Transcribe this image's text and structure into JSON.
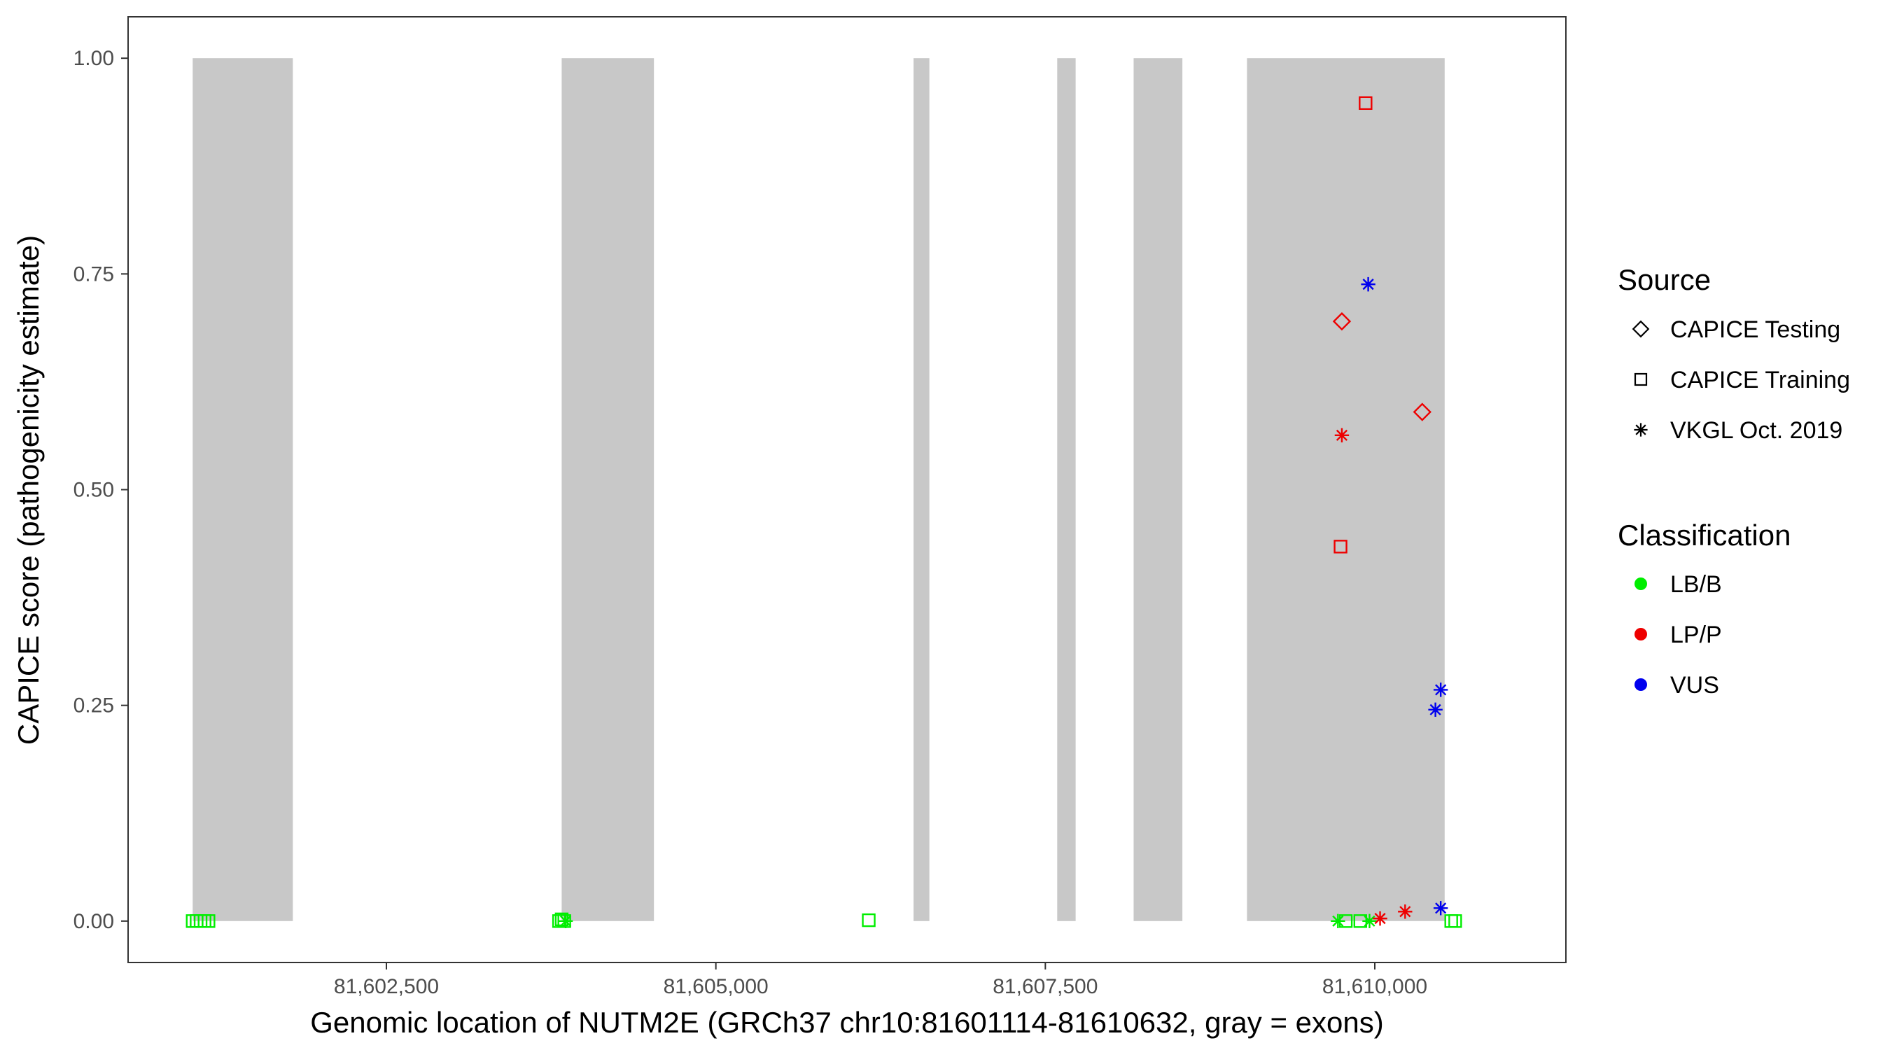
{
  "chart_data": {
    "type": "scatter",
    "xlabel": "Genomic location of NUTM2E (GRCh37 chr10:81601114-81610632, gray = exons)",
    "ylabel": "CAPICE score (pathogenicity estimate)",
    "xlim": [
      81600540,
      81611450
    ],
    "ylim": [
      -0.048,
      1.048
    ],
    "x_ticks": [
      81602500,
      81605000,
      81607500,
      81610000
    ],
    "x_tick_labels": [
      "81,602,500",
      "81,605,000",
      "81,607,500",
      "81,610,000"
    ],
    "y_ticks": [
      0,
      0.25,
      0.5,
      0.75,
      1.0
    ],
    "y_tick_labels": [
      "0.00",
      "0.25",
      "0.50",
      "0.75",
      "1.00"
    ],
    "grid": false,
    "exons": [
      [
        81601030,
        81601790
      ],
      [
        81603830,
        81604530
      ],
      [
        81606500,
        81606620
      ],
      [
        81607590,
        81607730
      ],
      [
        81608170,
        81608540
      ],
      [
        81609030,
        81610530
      ]
    ],
    "exon_color": "#c8c8c8",
    "legend_placement": "right",
    "legend": {
      "source_title": "Source",
      "source_items": [
        {
          "label": "CAPICE Testing",
          "shape": "diamond"
        },
        {
          "label": "CAPICE Training",
          "shape": "square"
        },
        {
          "label": "VKGL Oct. 2019",
          "shape": "asterisk"
        }
      ],
      "class_title": "Classification",
      "class_items": [
        {
          "label": "LB/B",
          "color": "#00ee00"
        },
        {
          "label": "LP/P",
          "color": "#ee0000"
        },
        {
          "label": "VUS",
          "color": "#0000ee"
        }
      ]
    },
    "points": [
      {
        "x": 81601030,
        "y": 0.0,
        "source": "square",
        "class": "LB/B"
      },
      {
        "x": 81601060,
        "y": 0.0,
        "source": "square",
        "class": "LB/B"
      },
      {
        "x": 81601090,
        "y": 0.0,
        "source": "square",
        "class": "LB/B"
      },
      {
        "x": 81601120,
        "y": 0.0,
        "source": "square",
        "class": "LB/B"
      },
      {
        "x": 81601150,
        "y": 0.0,
        "source": "square",
        "class": "LB/B"
      },
      {
        "x": 81603810,
        "y": 0.0,
        "source": "square",
        "class": "LB/B"
      },
      {
        "x": 81603830,
        "y": 0.002,
        "source": "square",
        "class": "LB/B"
      },
      {
        "x": 81603850,
        "y": 0.0,
        "source": "square",
        "class": "LB/B"
      },
      {
        "x": 81603860,
        "y": 0.0,
        "source": "asterisk",
        "class": "LB/B"
      },
      {
        "x": 81606160,
        "y": 0.001,
        "source": "square",
        "class": "LB/B"
      },
      {
        "x": 81609720,
        "y": 0.0,
        "source": "asterisk",
        "class": "LB/B"
      },
      {
        "x": 81609780,
        "y": 0.0,
        "source": "square",
        "class": "LB/B"
      },
      {
        "x": 81609890,
        "y": 0.0,
        "source": "square",
        "class": "LB/B"
      },
      {
        "x": 81609960,
        "y": 0.0,
        "source": "asterisk",
        "class": "LB/B"
      },
      {
        "x": 81610580,
        "y": 0.0,
        "source": "square",
        "class": "LB/B"
      },
      {
        "x": 81610610,
        "y": 0.0,
        "source": "square",
        "class": "LB/B"
      },
      {
        "x": 81609930,
        "y": 0.948,
        "source": "square",
        "class": "LP/P"
      },
      {
        "x": 81609750,
        "y": 0.695,
        "source": "diamond",
        "class": "LP/P"
      },
      {
        "x": 81609750,
        "y": 0.563,
        "source": "asterisk",
        "class": "LP/P"
      },
      {
        "x": 81610360,
        "y": 0.59,
        "source": "diamond",
        "class": "LP/P"
      },
      {
        "x": 81609740,
        "y": 0.434,
        "source": "square",
        "class": "LP/P"
      },
      {
        "x": 81610040,
        "y": 0.003,
        "source": "asterisk",
        "class": "LP/P"
      },
      {
        "x": 81610230,
        "y": 0.011,
        "source": "asterisk",
        "class": "LP/P"
      },
      {
        "x": 81609950,
        "y": 0.738,
        "source": "asterisk",
        "class": "VUS"
      },
      {
        "x": 81610500,
        "y": 0.268,
        "source": "asterisk",
        "class": "VUS"
      },
      {
        "x": 81610460,
        "y": 0.245,
        "source": "asterisk",
        "class": "VUS"
      },
      {
        "x": 81610500,
        "y": 0.015,
        "source": "asterisk",
        "class": "VUS"
      }
    ]
  }
}
